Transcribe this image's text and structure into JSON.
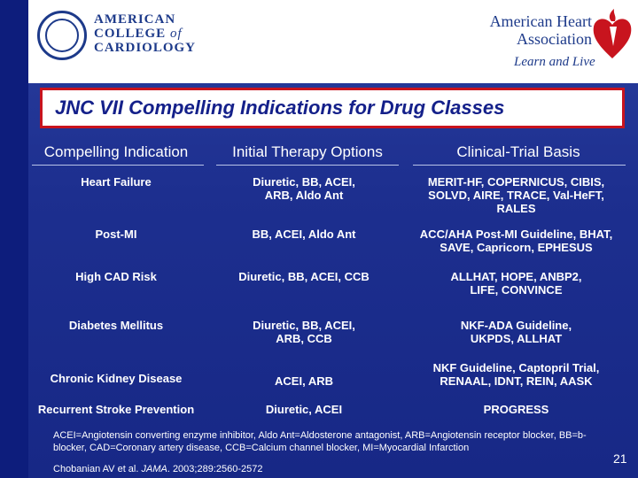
{
  "logos": {
    "acc_line1": "AMERICAN",
    "acc_line2": "COLLEGE",
    "acc_of": "of",
    "acc_line3": "CARDIOLOGY",
    "aha_line1": "American Heart",
    "aha_line2": "Association",
    "aha_tagline": "Learn and Live"
  },
  "title": "JNC VII Compelling Indications for Drug Classes",
  "columns": [
    "Compelling Indication",
    "Initial Therapy Options",
    "Clinical-Trial Basis"
  ],
  "rows": [
    {
      "indication": "Heart Failure",
      "therapy": "Diuretic, BB, ACEI,\nARB, Aldo Ant",
      "trials": "MERIT-HF, COPERNICUS, CIBIS,\nSOLVD, AIRE, TRACE, Val-HeFT,\nRALES"
    },
    {
      "indication": "Post-MI",
      "therapy": "BB, ACEI, Aldo Ant",
      "trials": "ACC/AHA Post-MI Guideline, BHAT,\nSAVE, Capricorn, EPHESUS"
    },
    {
      "indication": "High CAD Risk",
      "therapy": "Diuretic, BB, ACEI, CCB",
      "trials": "ALLHAT, HOPE, ANBP2,\nLIFE, CONVINCE"
    },
    {
      "indication": "Diabetes Mellitus",
      "therapy": "Diuretic, BB, ACEI,\nARB, CCB",
      "trials": "NKF-ADA Guideline,\nUKPDS, ALLHAT"
    },
    {
      "indication": "Chronic Kidney Disease",
      "therapy": "ACEI, ARB",
      "trials": "NKF Guideline, Captopril Trial,\nRENAAL, IDNT, REIN, AASK"
    },
    {
      "indication": "Recurrent Stroke Prevention",
      "therapy": "Diuretic, ACEI",
      "trials": "PROGRESS"
    }
  ],
  "footnote": "ACEI=Angiotensin converting enzyme inhibitor, Aldo Ant=Aldosterone antagonist, ARB=Angiotensin receptor blocker, BB=b-blocker, CAD=Coronary artery disease, CCB=Calcium channel blocker, MI=Myocardial Infarction",
  "citation": {
    "authors": "Chobanian AV et al. ",
    "journal": "JAMA",
    "details": ". 2003;289:2560-2572"
  },
  "page_number": "21",
  "colors": {
    "background": "#1d2f8f",
    "title_border": "#c8141e",
    "title_text": "#14208a",
    "aha_red": "#c8141e"
  }
}
